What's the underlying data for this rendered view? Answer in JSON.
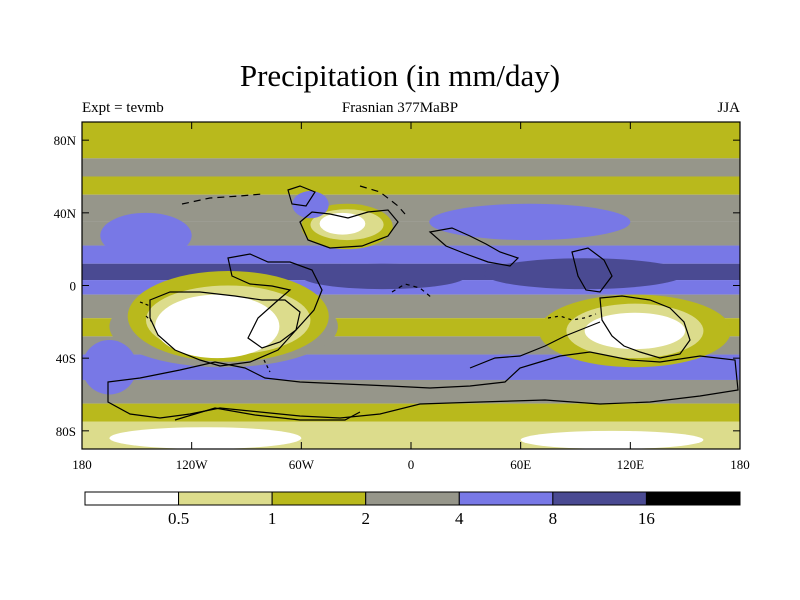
{
  "chart_data": {
    "type": "heatmap",
    "title": "Precipitation (in mm/day)",
    "subtitle": "Frasnian 377MaBP",
    "left_label": "Expt = tevmb",
    "right_label": "JJA",
    "x_range": [
      -180,
      180
    ],
    "y_range": [
      -90,
      90
    ],
    "x_ticks": [
      {
        "value": -180,
        "label": "180"
      },
      {
        "value": -120,
        "label": "120W"
      },
      {
        "value": -60,
        "label": "60W"
      },
      {
        "value": 0,
        "label": "0"
      },
      {
        "value": 60,
        "label": "60E"
      },
      {
        "value": 120,
        "label": "120E"
      },
      {
        "value": 180,
        "label": "180"
      }
    ],
    "y_ticks": [
      {
        "value": 80,
        "label": "80N"
      },
      {
        "value": 40,
        "label": "40N"
      },
      {
        "value": 0,
        "label": "0"
      },
      {
        "value": -40,
        "label": "40S"
      },
      {
        "value": -80,
        "label": "80S"
      }
    ],
    "colorbar": {
      "levels": [
        0.5,
        1,
        2,
        4,
        8,
        16
      ],
      "labels": [
        "0.5",
        "1",
        "2",
        "4",
        "8",
        "16"
      ],
      "colors": [
        "#ffffff",
        "#dcdc8c",
        "#b9b91c",
        "#96968a",
        "#7878e6",
        "#4a4a92",
        "#000000"
      ]
    },
    "latitude_bands": [
      {
        "lat": [
          70,
          90
        ],
        "class": 2
      },
      {
        "lat": [
          60,
          70
        ],
        "class": 3
      },
      {
        "lat": [
          50,
          60
        ],
        "class": 2
      },
      {
        "lat": [
          35,
          50
        ],
        "class": 3
      },
      {
        "lat": [
          22,
          35
        ],
        "class": 3
      },
      {
        "lat": [
          12,
          22
        ],
        "class": 4
      },
      {
        "lat": [
          3,
          12
        ],
        "class": 5
      },
      {
        "lat": [
          -5,
          3
        ],
        "class": 4
      },
      {
        "lat": [
          -18,
          -5
        ],
        "class": 3
      },
      {
        "lat": [
          -28,
          -18
        ],
        "class": 2
      },
      {
        "lat": [
          -38,
          -28
        ],
        "class": 3
      },
      {
        "lat": [
          -52,
          -38
        ],
        "class": 4
      },
      {
        "lat": [
          -65,
          -52
        ],
        "class": 3
      },
      {
        "lat": [
          -75,
          -65
        ],
        "class": 2
      },
      {
        "lat": [
          -90,
          -75
        ],
        "class": 1
      }
    ],
    "regions": [
      {
        "lon": [
          -165,
          -40
        ],
        "lat": [
          -45,
          0
        ],
        "class": 3
      },
      {
        "lon": [
          -155,
          -45
        ],
        "lat": [
          -42,
          8
        ],
        "class": 2
      },
      {
        "lon": [
          -145,
          -55
        ],
        "lat": [
          -38,
          0
        ],
        "class": 1
      },
      {
        "lon": [
          -140,
          -72
        ],
        "lat": [
          -40,
          -5
        ],
        "class": 0
      },
      {
        "lon": [
          -170,
          -120
        ],
        "lat": [
          15,
          40
        ],
        "class": 4
      },
      {
        "lon": [
          -60,
          30
        ],
        "lat": [
          -2,
          12
        ],
        "class": 5
      },
      {
        "lon": [
          40,
          150
        ],
        "lat": [
          -2,
          15
        ],
        "class": 5
      },
      {
        "lon": [
          -60,
          -10
        ],
        "lat": [
          20,
          45
        ],
        "class": 2
      },
      {
        "lon": [
          -55,
          -15
        ],
        "lat": [
          25,
          42
        ],
        "class": 1
      },
      {
        "lon": [
          -50,
          -25
        ],
        "lat": [
          28,
          40
        ],
        "class": 0
      },
      {
        "lon": [
          -65,
          -45
        ],
        "lat": [
          37,
          52
        ],
        "class": 4
      },
      {
        "lon": [
          10,
          120
        ],
        "lat": [
          25,
          45
        ],
        "class": 4
      },
      {
        "lon": [
          70,
          175
        ],
        "lat": [
          -45,
          -5
        ],
        "class": 2
      },
      {
        "lon": [
          85,
          160
        ],
        "lat": [
          -40,
          -10
        ],
        "class": 1
      },
      {
        "lon": [
          95,
          150
        ],
        "lat": [
          -35,
          -15
        ],
        "class": 0
      },
      {
        "lon": [
          -180,
          -150
        ],
        "lat": [
          -60,
          -30
        ],
        "class": 4
      },
      {
        "lon": [
          -165,
          -60
        ],
        "lat": [
          -90,
          -78
        ],
        "class": 0
      },
      {
        "lon": [
          60,
          160
        ],
        "lat": [
          -90,
          -80
        ],
        "class": 0
      }
    ]
  }
}
